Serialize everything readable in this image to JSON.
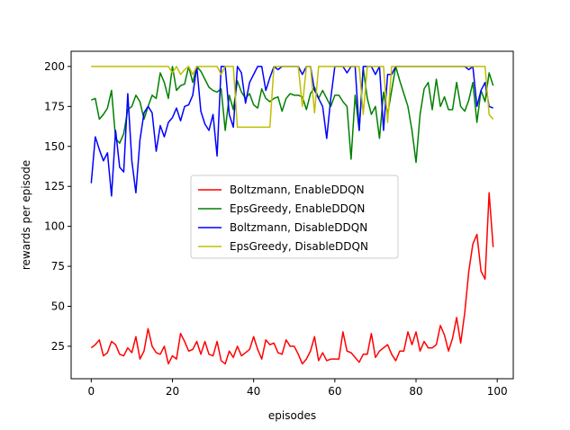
{
  "chart_data": {
    "type": "line",
    "title": "",
    "xlabel": "episodes",
    "ylabel": "rewards per episode",
    "xlim": [
      -4.95,
      103.95
    ],
    "ylim": [
      4.7,
      209.5
    ],
    "xticks": [
      0,
      20,
      40,
      60,
      80,
      100
    ],
    "yticks": [
      25,
      50,
      75,
      100,
      125,
      150,
      175,
      200
    ],
    "grid": false,
    "legend_position": "center",
    "series": [
      {
        "name": "Boltzmann, EnableDDQN",
        "color": "#ff0000",
        "values": [
          24,
          26,
          29,
          19,
          21,
          28,
          26,
          20,
          19,
          24,
          21,
          31,
          17,
          22,
          36,
          25,
          21,
          20,
          25,
          14,
          19,
          17,
          33,
          28,
          22,
          23,
          28,
          20,
          28,
          20,
          19,
          28,
          16,
          14,
          22,
          18,
          25,
          19,
          21,
          23,
          31,
          23,
          17,
          29,
          26,
          27,
          21,
          20,
          29,
          25,
          25,
          20,
          14,
          17,
          22,
          31,
          16,
          21,
          16,
          17,
          17,
          17,
          34,
          22,
          21,
          18,
          15,
          20,
          20,
          33,
          18,
          22,
          24,
          26,
          20,
          16,
          22,
          22,
          34,
          26,
          34,
          22,
          28,
          24,
          24,
          26,
          38,
          32,
          22,
          30,
          43,
          27,
          46,
          72,
          89,
          95,
          72,
          67,
          121,
          87
        ]
      },
      {
        "name": "EpsGreedy, EnableDDQN",
        "color": "#008000",
        "values": [
          179,
          180,
          167,
          170,
          174,
          185,
          155,
          152,
          158,
          173,
          175,
          182,
          178,
          167,
          175,
          182,
          180,
          196,
          190,
          180,
          200,
          185,
          188,
          189,
          200,
          190,
          200,
          197,
          192,
          187,
          185,
          184,
          186,
          160,
          182,
          173,
          191,
          184,
          180,
          183,
          176,
          174,
          186,
          180,
          178,
          180,
          181,
          172,
          180,
          183,
          182,
          182,
          181,
          173,
          183,
          187,
          180,
          185,
          180,
          175,
          182,
          182,
          178,
          175,
          142,
          182,
          160,
          199,
          180,
          170,
          175,
          155,
          184,
          170,
          185,
          200,
          191,
          183,
          175,
          160,
          140,
          170,
          186,
          190,
          173,
          192,
          175,
          181,
          173,
          173,
          190,
          175,
          172,
          179,
          190,
          165,
          185,
          178,
          196,
          188
        ]
      },
      {
        "name": "Boltzmann, DisableDDQN",
        "color": "#0000ff",
        "values": [
          127,
          156,
          148,
          141,
          146,
          119,
          160,
          137,
          134,
          183,
          141,
          121,
          154,
          171,
          175,
          171,
          147,
          163,
          156,
          165,
          168,
          174,
          166,
          175,
          176,
          182,
          200,
          172,
          164,
          160,
          170,
          144,
          200,
          200,
          170,
          162,
          200,
          196,
          177,
          190,
          195,
          200,
          200,
          185,
          193,
          200,
          198,
          200,
          200,
          200,
          200,
          200,
          195,
          200,
          200,
          185,
          180,
          175,
          155,
          180,
          200,
          200,
          200,
          196,
          200,
          200,
          160,
          200,
          200,
          200,
          195,
          200,
          160,
          195,
          195,
          200,
          200,
          200,
          200,
          200,
          200,
          200,
          200,
          200,
          200,
          200,
          200,
          200,
          200,
          200,
          200,
          200,
          200,
          198,
          200,
          175,
          185,
          190,
          175,
          174
        ]
      },
      {
        "name": "EpsGreedy, DisableDDQN",
        "color": "#bfbf00",
        "values": [
          200,
          200,
          200,
          200,
          200,
          200,
          200,
          200,
          200,
          200,
          200,
          200,
          200,
          200,
          200,
          200,
          200,
          200,
          200,
          200,
          196,
          200,
          195,
          198,
          200,
          195,
          200,
          200,
          200,
          200,
          200,
          200,
          195,
          200,
          200,
          200,
          162,
          162,
          162,
          162,
          162,
          162,
          162,
          162,
          162,
          200,
          200,
          200,
          200,
          200,
          200,
          200,
          175,
          200,
          200,
          171,
          200,
          200,
          200,
          200,
          200,
          200,
          200,
          200,
          200,
          200,
          200,
          170,
          200,
          200,
          200,
          200,
          200,
          165,
          200,
          200,
          200,
          200,
          200,
          200,
          200,
          200,
          200,
          200,
          200,
          200,
          200,
          200,
          200,
          200,
          200,
          200,
          200,
          200,
          200,
          200,
          200,
          200,
          170,
          167
        ]
      }
    ]
  }
}
